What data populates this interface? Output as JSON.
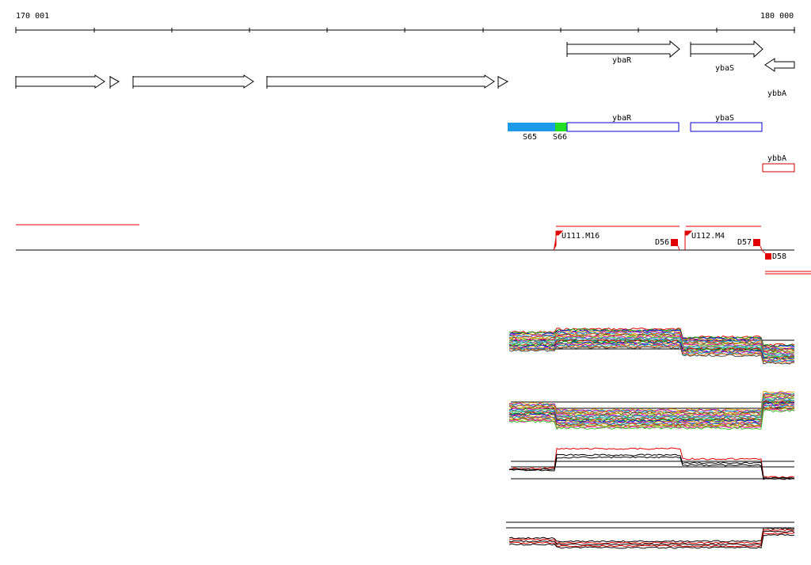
{
  "ruler": {
    "start_label": "170 001",
    "end_label": "180 000"
  },
  "genes_strand_plus": [
    {
      "label": "ybaR"
    },
    {
      "label": "ybaS"
    }
  ],
  "genes_strand_minus": [
    {
      "label": "ybbA"
    }
  ],
  "annotation_track": {
    "segments": [
      {
        "label": "S65"
      },
      {
        "label": "S66"
      }
    ],
    "genes": [
      {
        "label": "ybaR"
      },
      {
        "label": "ybaS"
      },
      {
        "label": "ybbA"
      }
    ]
  },
  "transcription_units": [
    {
      "label": "U111.M16",
      "terminator": "D56"
    },
    {
      "label": "U112.M4",
      "terminator": "D57"
    },
    {
      "label": "",
      "terminator": "D58"
    }
  ],
  "colors": {
    "segment_S65": "#1a9ae8",
    "segment_S66": "#22dd22",
    "gene_plus": "#0000cc",
    "gene_minus": "#cc0000",
    "unit": "#e00000"
  }
}
